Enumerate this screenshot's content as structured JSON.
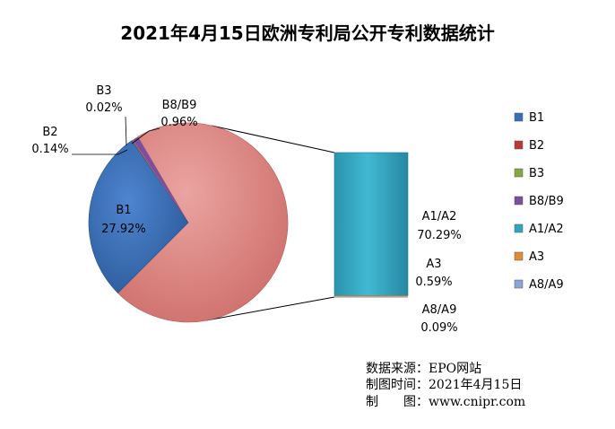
{
  "chart_data": {
    "type": "pie",
    "title": "2021年4月15日欧洲专利局公开专利数据统计",
    "slices": [
      {
        "label": "B1",
        "value": 27.92,
        "pct": "27.92%",
        "color": "#3a6fb8"
      },
      {
        "label": "B2",
        "value": 0.14,
        "pct": "0.14%",
        "color": "#b83a36"
      },
      {
        "label": "B3",
        "value": 0.02,
        "pct": "0.02%",
        "color": "#86a83e"
      },
      {
        "label": "B8/B9",
        "value": 0.96,
        "pct": "0.96%",
        "color": "#7a4f9c"
      },
      {
        "label": "A1/A2",
        "value": 70.29,
        "pct": "70.29%",
        "color": "#2fa6bf"
      },
      {
        "label": "A3",
        "value": 0.59,
        "pct": "0.59%",
        "color": "#e38d31"
      },
      {
        "label": "A8/A9",
        "value": 0.09,
        "pct": "0.09%",
        "color": "#8aa5d4"
      }
    ],
    "pie_of_pie": {
      "main_color": "#e08b88",
      "breakout": [
        "A1/A2",
        "A3",
        "A8/A9"
      ]
    },
    "legend_position": "right"
  },
  "source_lines": [
    "数据来源：EPO网站",
    "制图时间：2021年4月15日",
    "制　　图：www.cnipr.com"
  ]
}
